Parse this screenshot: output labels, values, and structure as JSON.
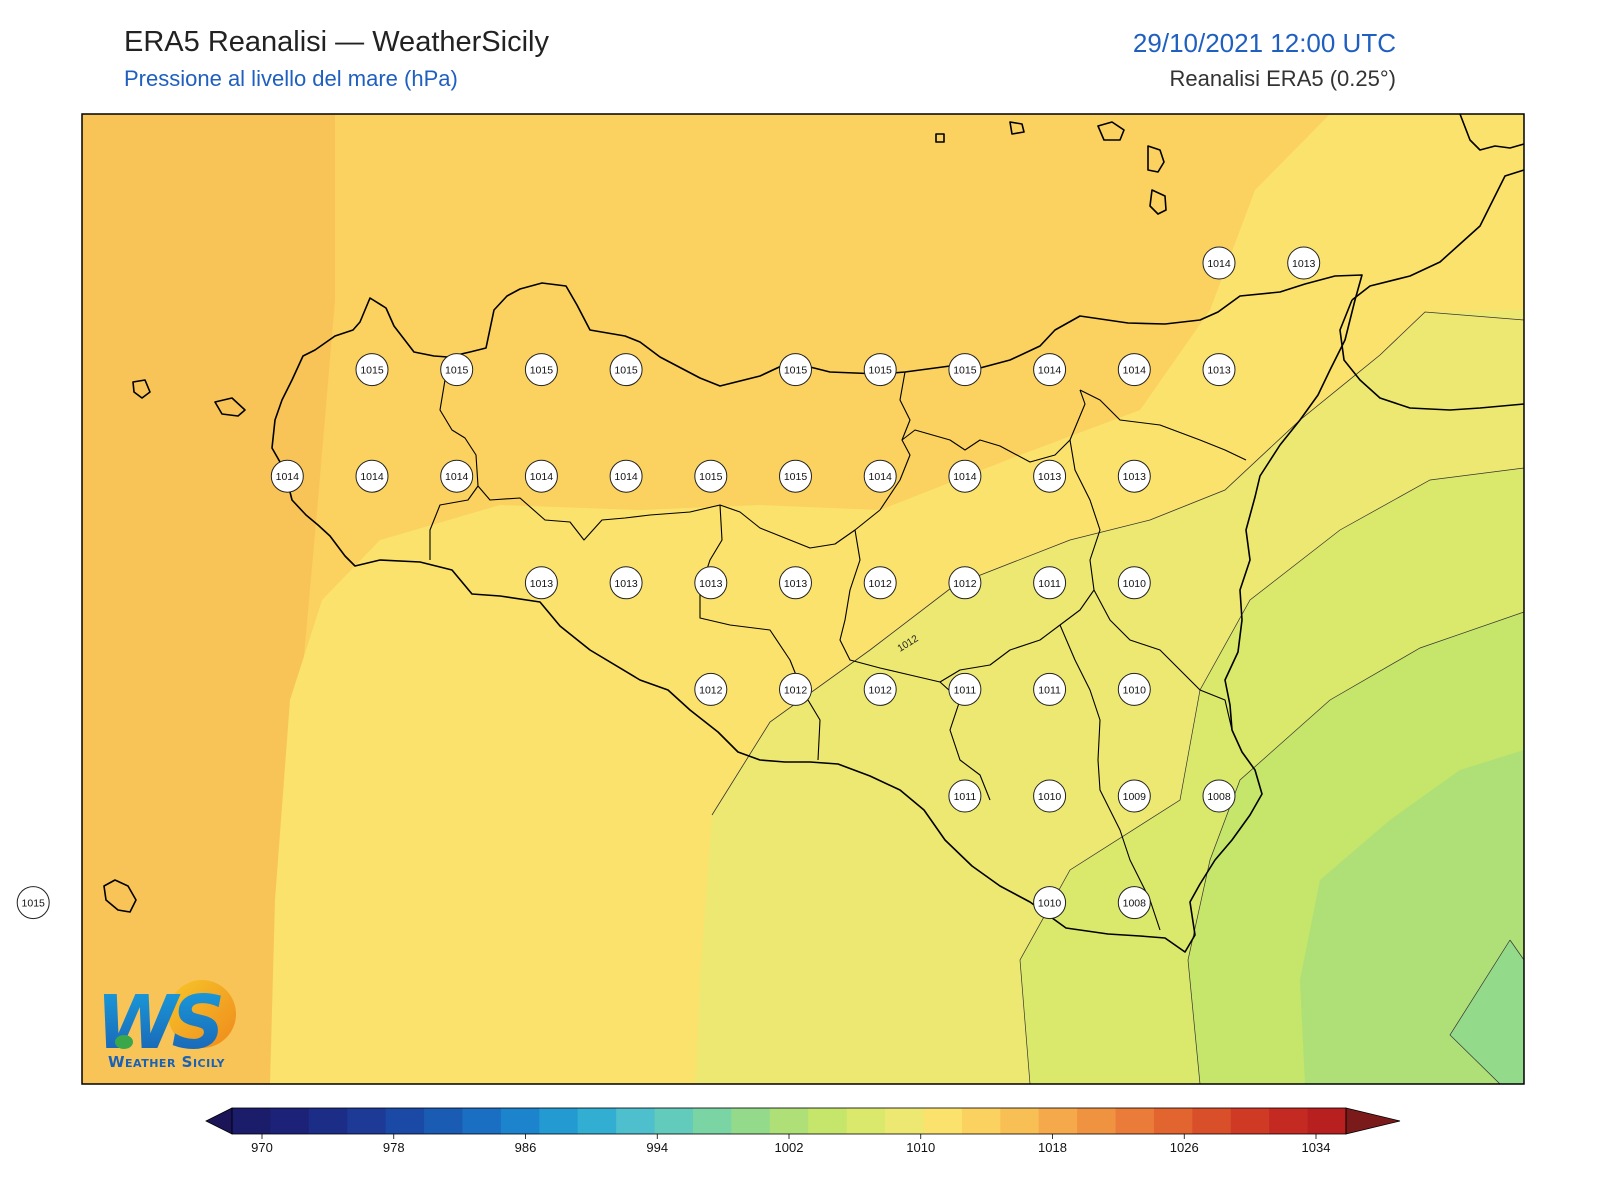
{
  "header": {
    "title": "ERA5 Reanalisi — WeatherSicily",
    "subtitle": "Pressione al livello del mare (hPa)",
    "datetime": "29/10/2021 12:00 UTC",
    "source": "Reanalisi ERA5 (0.25°)"
  },
  "contour_label": "1012",
  "colorbar": {
    "ticks": [
      "970",
      "978",
      "986",
      "994",
      "1002",
      "1010",
      "1018",
      "1026",
      "1034"
    ],
    "colors": [
      "#1b1d6b",
      "#1b2278",
      "#1c2d88",
      "#1d3a97",
      "#1b4aa6",
      "#1a5cb4",
      "#1a6fc3",
      "#1b84cc",
      "#239ad2",
      "#33aed3",
      "#4ebfcd",
      "#63cbbb",
      "#7ad4a4",
      "#93db8a",
      "#aee077",
      "#c5e56b",
      "#dae86b",
      "#ede872",
      "#fbe26c",
      "#fbd15f",
      "#f8bf55",
      "#f5a94b",
      "#f09341",
      "#ea7b38",
      "#e26530",
      "#d94f2a",
      "#cf3a25",
      "#c52a22",
      "#b82020"
    ],
    "min_color": "#1b1458",
    "max_color": "#7a1a1a"
  },
  "pressure_stations": [
    {
      "value": "1014",
      "lon": 15.45,
      "lat": 38.5
    },
    {
      "value": "1013",
      "lon": 15.7,
      "lat": 38.5
    },
    {
      "value": "1015",
      "lon": 12.95,
      "lat": 38.25
    },
    {
      "value": "1015",
      "lon": 13.2,
      "lat": 38.25
    },
    {
      "value": "1015",
      "lon": 13.45,
      "lat": 38.25
    },
    {
      "value": "1015",
      "lon": 13.7,
      "lat": 38.25
    },
    {
      "value": "1015",
      "lon": 14.2,
      "lat": 38.25
    },
    {
      "value": "1015",
      "lon": 14.45,
      "lat": 38.25
    },
    {
      "value": "1015",
      "lon": 14.7,
      "lat": 38.25
    },
    {
      "value": "1014",
      "lon": 14.95,
      "lat": 38.25
    },
    {
      "value": "1014",
      "lon": 15.2,
      "lat": 38.25
    },
    {
      "value": "1013",
      "lon": 15.45,
      "lat": 38.25
    },
    {
      "value": "1014",
      "lon": 12.7,
      "lat": 38.0
    },
    {
      "value": "1014",
      "lon": 12.95,
      "lat": 38.0
    },
    {
      "value": "1014",
      "lon": 13.2,
      "lat": 38.0
    },
    {
      "value": "1014",
      "lon": 13.45,
      "lat": 38.0
    },
    {
      "value": "1014",
      "lon": 13.7,
      "lat": 38.0
    },
    {
      "value": "1015",
      "lon": 13.95,
      "lat": 38.0
    },
    {
      "value": "1015",
      "lon": 14.2,
      "lat": 38.0
    },
    {
      "value": "1014",
      "lon": 14.45,
      "lat": 38.0
    },
    {
      "value": "1014",
      "lon": 14.7,
      "lat": 38.0
    },
    {
      "value": "1013",
      "lon": 14.95,
      "lat": 38.0
    },
    {
      "value": "1013",
      "lon": 15.2,
      "lat": 38.0
    },
    {
      "value": "1013",
      "lon": 13.45,
      "lat": 37.75
    },
    {
      "value": "1013",
      "lon": 13.7,
      "lat": 37.75
    },
    {
      "value": "1013",
      "lon": 13.95,
      "lat": 37.75
    },
    {
      "value": "1013",
      "lon": 14.2,
      "lat": 37.75
    },
    {
      "value": "1012",
      "lon": 14.45,
      "lat": 37.75
    },
    {
      "value": "1012",
      "lon": 14.7,
      "lat": 37.75
    },
    {
      "value": "1011",
      "lon": 14.95,
      "lat": 37.75
    },
    {
      "value": "1010",
      "lon": 15.2,
      "lat": 37.75
    },
    {
      "value": "1012",
      "lon": 13.95,
      "lat": 37.5
    },
    {
      "value": "1012",
      "lon": 14.2,
      "lat": 37.5
    },
    {
      "value": "1012",
      "lon": 14.45,
      "lat": 37.5
    },
    {
      "value": "1011",
      "lon": 14.7,
      "lat": 37.5
    },
    {
      "value": "1011",
      "lon": 14.95,
      "lat": 37.5
    },
    {
      "value": "1010",
      "lon": 15.2,
      "lat": 37.5
    },
    {
      "value": "1011",
      "lon": 14.7,
      "lat": 37.25
    },
    {
      "value": "1010",
      "lon": 14.95,
      "lat": 37.25
    },
    {
      "value": "1009",
      "lon": 15.2,
      "lat": 37.25
    },
    {
      "value": "1008",
      "lon": 15.45,
      "lat": 37.25
    },
    {
      "value": "1010",
      "lon": 14.95,
      "lat": 37.0
    },
    {
      "value": "1008",
      "lon": 15.2,
      "lat": 37.0
    },
    {
      "value": "1015",
      "lon": 11.95,
      "lat": 37.0
    }
  ],
  "logo": {
    "letters": "WS",
    "text": "Weather Sicily"
  }
}
